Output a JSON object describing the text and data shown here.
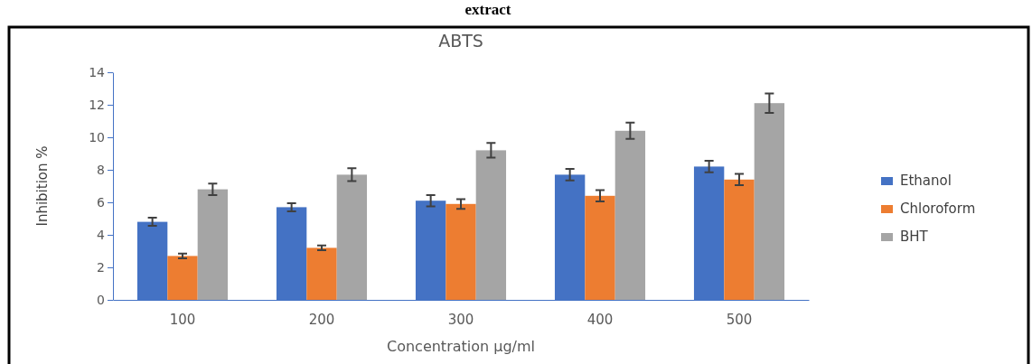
{
  "chart_data": {
    "type": "bar",
    "title": "ABTS",
    "xlabel": "Concentration µg/ml",
    "ylabel": "Inhibition %",
    "annotations": [
      "extract"
    ],
    "categories": [
      "100",
      "200",
      "300",
      "400",
      "500"
    ],
    "series": [
      {
        "name": "Ethanol",
        "color": "#4472c4",
        "values": [
          4.8,
          5.7,
          6.1,
          7.7,
          8.2
        ],
        "errors": [
          0.25,
          0.25,
          0.35,
          0.35,
          0.35
        ]
      },
      {
        "name": "Chloroform",
        "color": "#ed7d31",
        "values": [
          2.7,
          3.2,
          5.9,
          6.4,
          7.4
        ],
        "errors": [
          0.15,
          0.15,
          0.3,
          0.35,
          0.35
        ]
      },
      {
        "name": "BHT",
        "color": "#a5a5a5",
        "values": [
          6.8,
          7.7,
          9.2,
          10.4,
          12.1
        ],
        "errors": [
          0.35,
          0.4,
          0.45,
          0.5,
          0.6
        ]
      }
    ],
    "ylim": [
      0,
      14
    ],
    "yticks": [
      0,
      2,
      4,
      6,
      8,
      10,
      12,
      14
    ],
    "grid": false,
    "legend": "right"
  }
}
